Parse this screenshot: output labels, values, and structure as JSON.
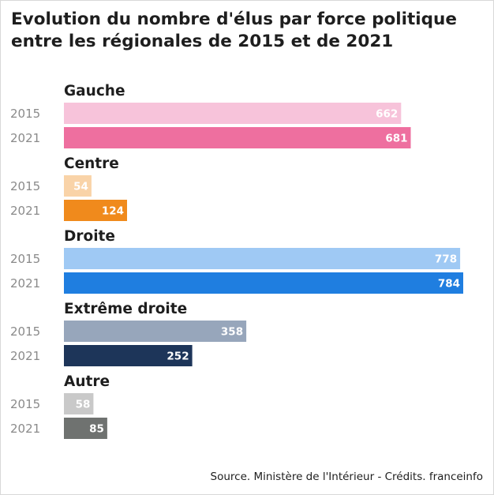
{
  "title_line1": "Evolution du nombre d'élus par force politique",
  "title_line2": "entre les régionales de 2015 et de 2021",
  "source": "Source. Ministère de l'Intérieur - Crédits. franceinfo",
  "chart_data": {
    "type": "bar",
    "orientation": "horizontal",
    "title": "Evolution du nombre d'élus par force politique entre les régionales de 2015 et de 2021",
    "xlabel": "",
    "ylabel": "",
    "xlim": [
      0,
      784
    ],
    "grid": false,
    "categories": [
      "Gauche",
      "Centre",
      "Droite",
      "Extrême droite",
      "Autre"
    ],
    "series": [
      {
        "name": "2015",
        "values": [
          662,
          54,
          778,
          358,
          58
        ]
      },
      {
        "name": "2021",
        "values": [
          681,
          124,
          784,
          252,
          85
        ]
      }
    ],
    "colors": {
      "Gauche": {
        "2015": "#f7c3da",
        "2021": "#ee6f9f"
      },
      "Centre": {
        "2015": "#f9d3a8",
        "2021": "#f08a1c"
      },
      "Droite": {
        "2015": "#9fc9f4",
        "2021": "#1f7ee0"
      },
      "Extrême droite": {
        "2015": "#97a6bb",
        "2021": "#1d3559"
      },
      "Autre": {
        "2015": "#c9c9c9",
        "2021": "#6f7270"
      }
    }
  }
}
